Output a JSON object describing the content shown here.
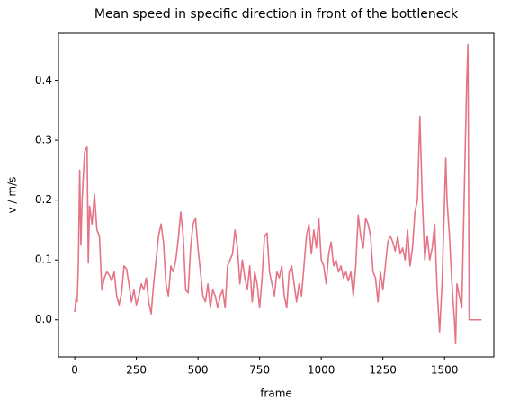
{
  "chart_data": {
    "type": "line",
    "title": "Mean speed in specific direction in front of the bottleneck",
    "xlabel": "frame",
    "ylabel": "v / m/s",
    "xlim": [
      -66,
      1700
    ],
    "ylim": [
      -0.062,
      0.479
    ],
    "xticks": [
      0,
      250,
      500,
      750,
      1000,
      1250,
      1500
    ],
    "yticks": [
      {
        "value": 0,
        "label": "0.0"
      },
      0.1,
      0.2,
      0.3,
      0.4
    ],
    "grid": false,
    "x": [
      0,
      5,
      10,
      15,
      20,
      25,
      30,
      40,
      50,
      55,
      60,
      70,
      80,
      90,
      100,
      110,
      120,
      130,
      140,
      150,
      160,
      170,
      180,
      190,
      200,
      210,
      220,
      230,
      240,
      250,
      260,
      270,
      280,
      290,
      300,
      310,
      320,
      330,
      340,
      350,
      360,
      370,
      380,
      390,
      400,
      410,
      420,
      430,
      440,
      450,
      460,
      470,
      480,
      490,
      500,
      510,
      520,
      530,
      540,
      550,
      560,
      570,
      580,
      590,
      600,
      610,
      620,
      630,
      640,
      650,
      660,
      670,
      680,
      690,
      700,
      710,
      720,
      730,
      740,
      750,
      760,
      770,
      780,
      790,
      800,
      810,
      820,
      830,
      840,
      850,
      860,
      870,
      880,
      890,
      900,
      910,
      920,
      930,
      940,
      950,
      960,
      970,
      980,
      990,
      1000,
      1010,
      1020,
      1030,
      1040,
      1050,
      1060,
      1070,
      1080,
      1090,
      1100,
      1110,
      1120,
      1130,
      1140,
      1150,
      1160,
      1170,
      1180,
      1190,
      1200,
      1210,
      1220,
      1230,
      1240,
      1250,
      1260,
      1270,
      1280,
      1290,
      1300,
      1310,
      1320,
      1330,
      1340,
      1350,
      1360,
      1370,
      1380,
      1390,
      1400,
      1410,
      1420,
      1430,
      1440,
      1450,
      1460,
      1470,
      1480,
      1490,
      1500,
      1505,
      1510,
      1520,
      1530,
      1540,
      1545,
      1550,
      1560,
      1570,
      1580,
      1590,
      1595,
      1600,
      1650
    ],
    "series": [
      {
        "name": "mean speed",
        "color": "#e57486",
        "values": [
          0.013,
          0.035,
          0.03,
          0.1,
          0.25,
          0.125,
          0.2,
          0.28,
          0.29,
          0.095,
          0.19,
          0.16,
          0.21,
          0.15,
          0.14,
          0.05,
          0.07,
          0.08,
          0.075,
          0.065,
          0.08,
          0.04,
          0.025,
          0.045,
          0.09,
          0.085,
          0.06,
          0.03,
          0.05,
          0.025,
          0.04,
          0.06,
          0.05,
          0.07,
          0.03,
          0.01,
          0.06,
          0.1,
          0.14,
          0.16,
          0.13,
          0.06,
          0.04,
          0.09,
          0.08,
          0.1,
          0.135,
          0.18,
          0.14,
          0.05,
          0.045,
          0.12,
          0.16,
          0.17,
          0.12,
          0.08,
          0.04,
          0.03,
          0.06,
          0.02,
          0.05,
          0.04,
          0.02,
          0.04,
          0.05,
          0.02,
          0.09,
          0.1,
          0.11,
          0.15,
          0.12,
          0.06,
          0.1,
          0.07,
          0.05,
          0.09,
          0.03,
          0.08,
          0.06,
          0.02,
          0.07,
          0.14,
          0.145,
          0.08,
          0.06,
          0.04,
          0.08,
          0.07,
          0.09,
          0.04,
          0.02,
          0.08,
          0.09,
          0.06,
          0.03,
          0.06,
          0.04,
          0.09,
          0.14,
          0.16,
          0.11,
          0.15,
          0.12,
          0.17,
          0.1,
          0.09,
          0.06,
          0.11,
          0.13,
          0.09,
          0.1,
          0.08,
          0.09,
          0.07,
          0.08,
          0.065,
          0.08,
          0.04,
          0.09,
          0.175,
          0.14,
          0.12,
          0.17,
          0.16,
          0.14,
          0.08,
          0.07,
          0.03,
          0.08,
          0.05,
          0.09,
          0.13,
          0.14,
          0.13,
          0.115,
          0.14,
          0.11,
          0.12,
          0.1,
          0.15,
          0.09,
          0.12,
          0.18,
          0.2,
          0.34,
          0.2,
          0.1,
          0.14,
          0.1,
          0.12,
          0.16,
          0.05,
          -0.02,
          0.06,
          0.2,
          0.27,
          0.2,
          0.14,
          0.06,
          0.0,
          -0.04,
          0.06,
          0.04,
          0.02,
          0.21,
          0.4,
          0.46,
          0.0,
          0.0
        ]
      }
    ]
  }
}
